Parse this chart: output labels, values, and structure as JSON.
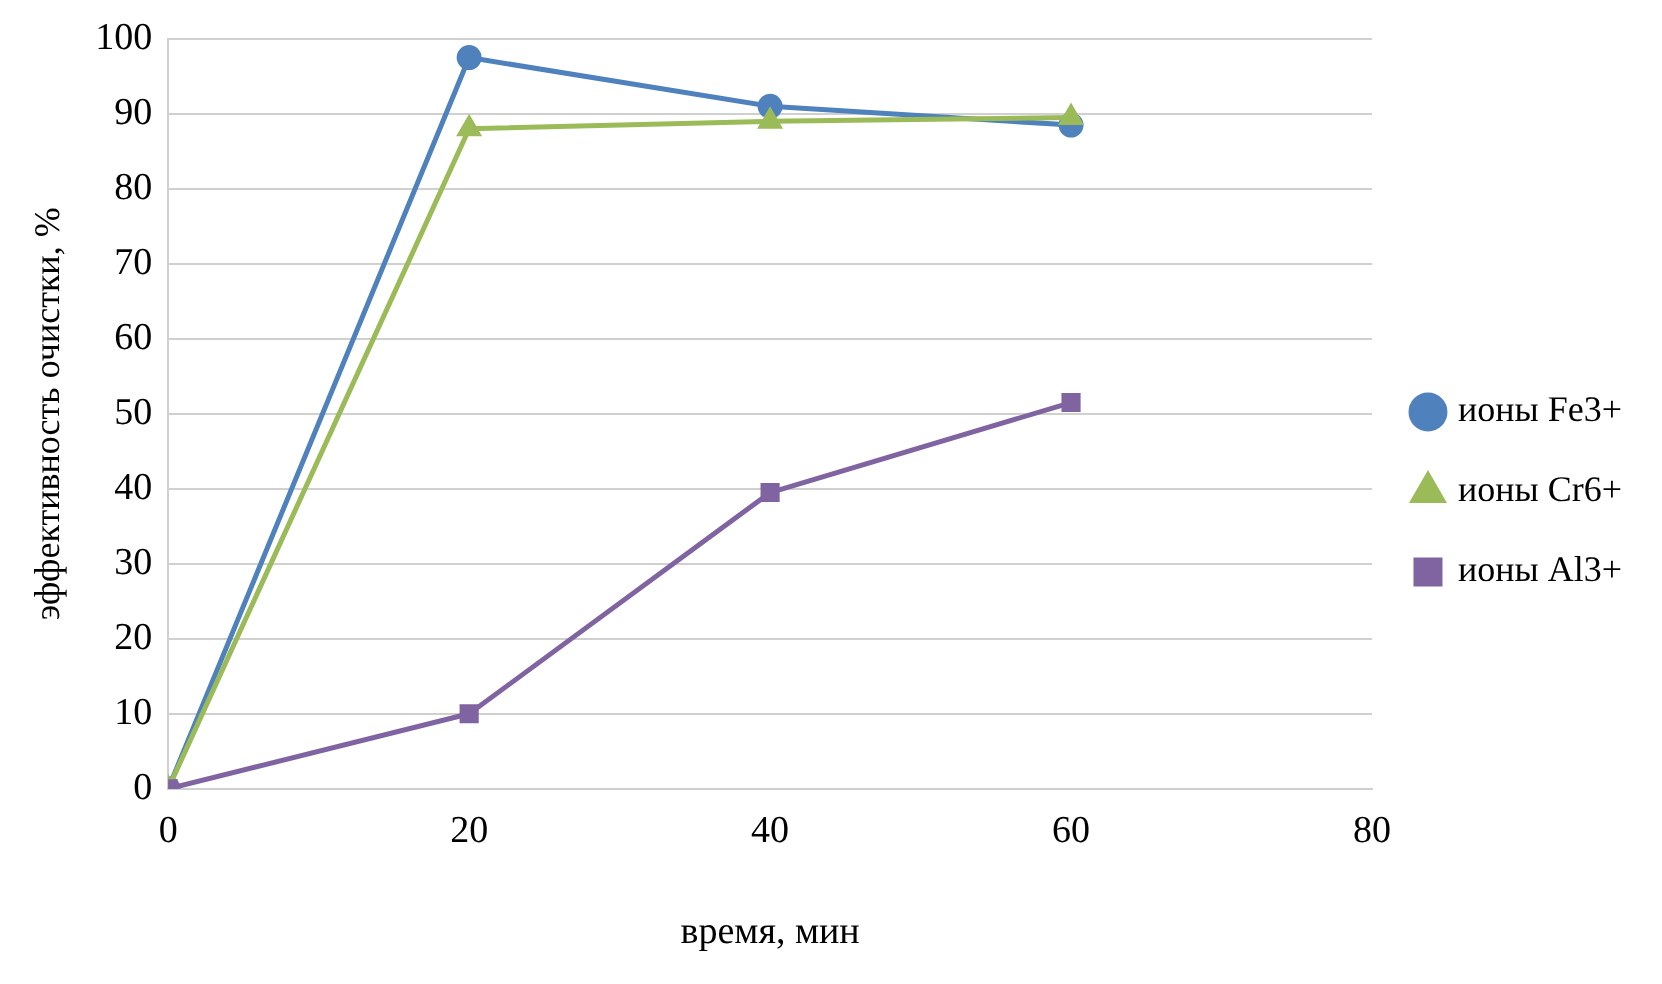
{
  "chart_data": {
    "type": "line",
    "xlabel": "время, мин",
    "ylabel": "эффективность очистки, %",
    "x": [
      0,
      20,
      40,
      60
    ],
    "series": [
      {
        "name": "ионы Fe3+",
        "color": "#4f81bd",
        "marker": "circle",
        "values": [
          0,
          97.5,
          91,
          88.5
        ]
      },
      {
        "name": "ионы Cr6+",
        "color": "#9bbb59",
        "marker": "triangle",
        "values": [
          0,
          88,
          89,
          89.5
        ]
      },
      {
        "name": "ионы Al3+",
        "color": "#8064a2",
        "marker": "square",
        "values": [
          0,
          10,
          39.5,
          51.5
        ]
      }
    ],
    "xlim": [
      0,
      80
    ],
    "xticks": [
      0,
      20,
      40,
      60,
      80
    ],
    "ylim": [
      0,
      100
    ],
    "yticks": [
      0,
      10,
      20,
      30,
      40,
      50,
      60,
      70,
      80,
      90,
      100
    ],
    "grid": "y",
    "legend": "right"
  }
}
